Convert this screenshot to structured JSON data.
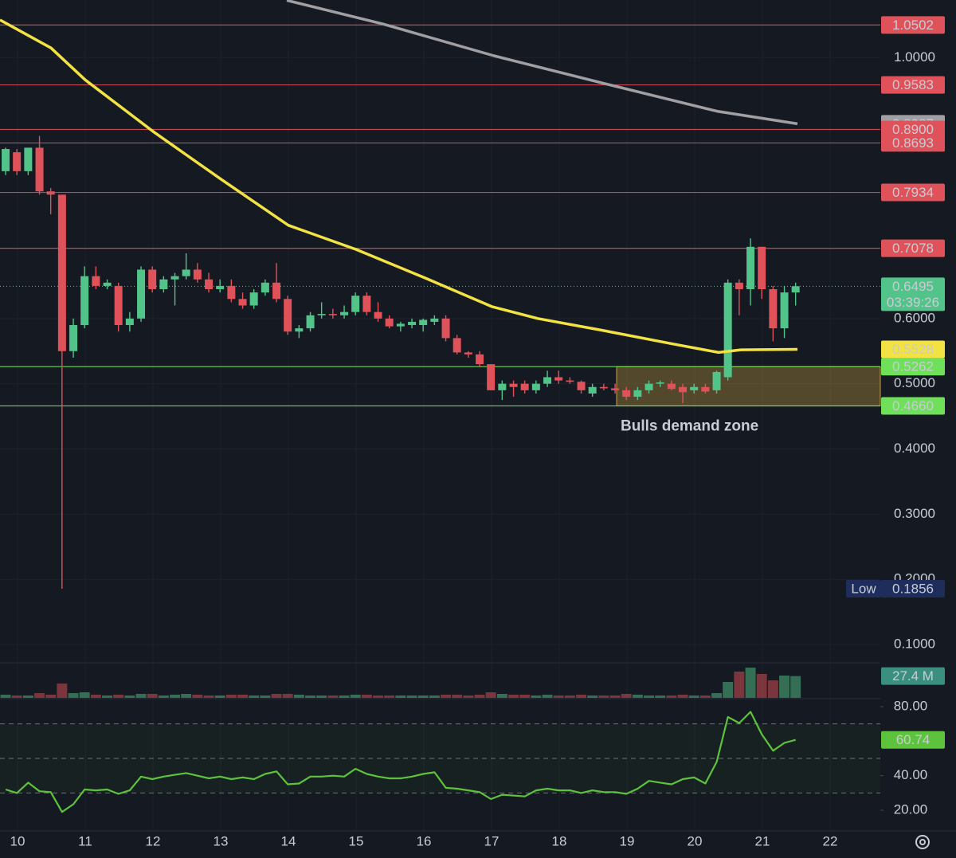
{
  "chart_data": {
    "type": "candlestick",
    "up_color": "#52c48a",
    "down_color": "#e0525a",
    "xlim": [
      9.741,
      22.741
    ],
    "xticks": [
      10,
      11,
      12,
      13,
      14,
      15,
      16,
      17,
      18,
      19,
      20,
      21,
      22
    ],
    "ylim": [
      0.072,
      1.0885
    ],
    "yticks": [
      {
        "value": 0.1,
        "label": "0.1000"
      },
      {
        "value": 0.2,
        "label": "0.2000"
      },
      {
        "value": 0.3,
        "label": "0.3000"
      },
      {
        "value": 0.4,
        "label": "0.4000"
      },
      {
        "value": 0.5,
        "label": "0.5000"
      },
      {
        "value": 0.6,
        "label": "0.6000"
      },
      {
        "value": 1.0,
        "label": "1.0000"
      }
    ],
    "grid": true,
    "x": [
      9.824,
      9.99,
      10.157,
      10.324,
      10.49,
      10.657,
      10.824,
      10.99,
      11.157,
      11.324,
      11.49,
      11.657,
      11.824,
      11.99,
      12.157,
      12.324,
      12.49,
      12.657,
      12.824,
      12.99,
      13.157,
      13.324,
      13.49,
      13.657,
      13.824,
      13.99,
      14.157,
      14.324,
      14.49,
      14.657,
      14.824,
      14.99,
      15.157,
      15.324,
      15.49,
      15.657,
      15.824,
      15.99,
      16.157,
      16.324,
      16.49,
      16.657,
      16.824,
      16.99,
      17.157,
      17.324,
      17.49,
      17.657,
      17.824,
      17.99,
      18.157,
      18.324,
      18.49,
      18.657,
      18.824,
      18.99,
      19.157,
      19.324,
      19.49,
      19.657,
      19.824,
      19.99,
      20.157,
      20.324,
      20.49,
      20.657,
      20.824,
      20.99,
      21.157,
      21.324,
      21.49
    ],
    "open": [
      0.826,
      0.855,
      0.826,
      0.862,
      0.795,
      0.79,
      0.55,
      0.59,
      0.665,
      0.65,
      0.65,
      0.59,
      0.6,
      0.675,
      0.645,
      0.66,
      0.665,
      0.675,
      0.66,
      0.645,
      0.65,
      0.63,
      0.62,
      0.64,
      0.655,
      0.63,
      0.58,
      0.585,
      0.605,
      0.607,
      0.605,
      0.61,
      0.635,
      0.61,
      0.6,
      0.588,
      0.59,
      0.59,
      0.595,
      0.6,
      0.57,
      0.548,
      0.545,
      0.53,
      0.49,
      0.5,
      0.5,
      0.49,
      0.5,
      0.51,
      0.505,
      0.503,
      0.485,
      0.495,
      0.493,
      0.49,
      0.48,
      0.49,
      0.5,
      0.5,
      0.495,
      0.49,
      0.495,
      0.49,
      0.51,
      0.655,
      0.645,
      0.71,
      0.645,
      0.585,
      0.64
    ],
    "high": [
      0.862,
      0.86,
      0.86,
      0.88,
      0.8,
      0.79,
      0.6,
      0.68,
      0.68,
      0.66,
      0.655,
      0.61,
      0.68,
      0.68,
      0.665,
      0.67,
      0.7,
      0.685,
      0.67,
      0.66,
      0.66,
      0.64,
      0.645,
      0.66,
      0.685,
      0.635,
      0.59,
      0.61,
      0.625,
      0.615,
      0.62,
      0.64,
      0.64,
      0.625,
      0.605,
      0.595,
      0.6,
      0.6,
      0.605,
      0.605,
      0.575,
      0.55,
      0.55,
      0.53,
      0.505,
      0.505,
      0.505,
      0.505,
      0.52,
      0.52,
      0.51,
      0.505,
      0.5,
      0.5,
      0.5,
      0.495,
      0.495,
      0.505,
      0.505,
      0.505,
      0.5,
      0.5,
      0.5,
      0.52,
      0.66,
      0.66,
      0.723,
      0.71,
      0.65,
      0.65,
      0.655
    ],
    "low": [
      0.82,
      0.82,
      0.82,
      0.79,
      0.76,
      0.1856,
      0.54,
      0.585,
      0.645,
      0.645,
      0.58,
      0.58,
      0.595,
      0.64,
      0.64,
      0.62,
      0.66,
      0.655,
      0.64,
      0.64,
      0.625,
      0.615,
      0.615,
      0.635,
      0.625,
      0.575,
      0.57,
      0.58,
      0.6,
      0.6,
      0.6,
      0.605,
      0.605,
      0.595,
      0.585,
      0.58,
      0.585,
      0.58,
      0.59,
      0.565,
      0.545,
      0.54,
      0.525,
      0.49,
      0.475,
      0.48,
      0.485,
      0.485,
      0.495,
      0.5,
      0.5,
      0.485,
      0.48,
      0.49,
      0.485,
      0.475,
      0.475,
      0.485,
      0.495,
      0.49,
      0.47,
      0.485,
      0.485,
      0.485,
      0.505,
      0.605,
      0.62,
      0.63,
      0.565,
      0.57,
      0.62
    ],
    "close": [
      0.86,
      0.826,
      0.862,
      0.795,
      0.79,
      0.55,
      0.59,
      0.665,
      0.65,
      0.655,
      0.59,
      0.6,
      0.675,
      0.645,
      0.66,
      0.665,
      0.675,
      0.66,
      0.645,
      0.65,
      0.63,
      0.62,
      0.64,
      0.655,
      0.63,
      0.58,
      0.585,
      0.605,
      0.607,
      0.605,
      0.61,
      0.635,
      0.61,
      0.6,
      0.588,
      0.592,
      0.595,
      0.598,
      0.6,
      0.57,
      0.548,
      0.545,
      0.53,
      0.49,
      0.5,
      0.495,
      0.49,
      0.5,
      0.51,
      0.505,
      0.503,
      0.49,
      0.495,
      0.493,
      0.49,
      0.48,
      0.49,
      0.5,
      0.502,
      0.492,
      0.487,
      0.495,
      0.488,
      0.518,
      0.655,
      0.645,
      0.71,
      0.645,
      0.585,
      0.64,
      0.6495
    ],
    "volume": [
      4,
      3,
      3,
      6,
      4,
      18,
      6,
      7,
      4,
      3,
      4,
      3,
      5,
      5,
      3,
      4,
      5,
      4,
      3,
      3,
      4,
      4,
      3,
      3,
      5,
      5,
      4,
      3,
      3,
      3,
      3,
      4,
      4,
      3,
      3,
      3,
      3,
      3,
      3,
      4,
      4,
      3,
      4,
      7,
      5,
      4,
      4,
      3,
      4,
      3,
      3,
      4,
      3,
      3,
      3,
      5,
      4,
      3,
      3,
      3,
      4,
      3,
      3,
      6,
      20,
      33,
      38,
      30,
      22,
      28,
      27.4
    ],
    "volume_ylim": [
      0,
      44
    ],
    "volume_label": {
      "value": 27.4,
      "label": "27.4 M"
    },
    "moving_averages": [
      {
        "color": "#f2e244",
        "x": [
          9.741,
          10.494,
          11.0,
          12.0,
          13.0,
          14.0,
          15.0,
          16.0,
          17.012,
          17.682,
          18.682,
          19.682,
          20.353,
          20.682,
          21.517
        ],
        "values": [
          1.058,
          1.015,
          0.966,
          0.887,
          0.814,
          0.743,
          0.706,
          0.663,
          0.618,
          0.6,
          0.581,
          0.561,
          0.548,
          0.552,
          0.5528
        ]
      },
      {
        "color": "#a0a0a4",
        "x": [
          13.976,
          15.388,
          17.035,
          18.682,
          20.329,
          21.517
        ],
        "values": [
          1.088,
          1.052,
          1.003,
          0.96,
          0.918,
          0.8987
        ]
      }
    ],
    "levels": [
      {
        "value": 1.0502,
        "color": "#e0525a",
        "text_color": "#ffffff",
        "line": "solid"
      },
      {
        "value": 0.9583,
        "color": "#e0525a",
        "text_color": "#ffffff",
        "line": "solid"
      },
      {
        "value": 0.8987,
        "color": "#a0a0a4",
        "text_color": "#111111",
        "line": "none"
      },
      {
        "value": 0.89,
        "label": "0.8900",
        "color": "#e0525a",
        "text_color": "#ffffff",
        "line": "solid"
      },
      {
        "value": 0.8693,
        "color": "#e0525a",
        "text_color": "#ffffff",
        "line": "solid"
      },
      {
        "value": 0.7934,
        "color": "#e0525a",
        "text_color": "#ffffff",
        "line": "solid"
      },
      {
        "value": 0.7078,
        "color": "#e0525a",
        "text_color": "#ffffff",
        "line": "solid"
      },
      {
        "value": 0.6495,
        "color": "#52c48a",
        "text_color": "#111111",
        "line": "dotted",
        "countdown": "03:39:26"
      },
      {
        "value": 0.5528,
        "color": "#f2e244",
        "text_color": "#111111",
        "line": "none"
      },
      {
        "value": 0.5262,
        "color": "#6ee05a",
        "text_color": "#111111",
        "line": "solid"
      },
      {
        "value": 0.466,
        "label": "0.4660",
        "color": "#6ee05a",
        "text_color": "#111111",
        "line": "solid"
      },
      {
        "value": 0.1856,
        "color": "#1f2d5c",
        "text_color": "#e0e4f0",
        "line": "none",
        "tag": "Low"
      }
    ],
    "zone": {
      "x_start": 18.847,
      "low": 0.466,
      "high": 0.5262,
      "color": "#c8a040",
      "label": "Bulls demand zone"
    },
    "rsi": {
      "color": "#5ec33c",
      "ylim": [
        8.5,
        85.06
      ],
      "yticks": [
        {
          "value": 80,
          "label": "80.00"
        },
        {
          "value": 40,
          "label": "40.00"
        },
        {
          "value": 20,
          "label": "20.00"
        }
      ],
      "bands": [
        70,
        50,
        30
      ],
      "values": [
        32,
        30,
        36,
        31,
        30.5,
        19,
        23.5,
        32,
        31.5,
        32,
        29.5,
        31.5,
        39.5,
        38,
        39.5,
        40.5,
        41.5,
        40,
        38.5,
        39.5,
        38,
        39,
        38,
        41,
        42.5,
        35,
        35.5,
        39.5,
        39.5,
        40,
        39.5,
        44,
        41,
        39.5,
        38.5,
        38.5,
        39.5,
        41,
        42,
        33,
        32.5,
        31.5,
        30.5,
        26.5,
        29,
        28.5,
        28,
        31.5,
        32.5,
        31.5,
        31.5,
        30,
        31.5,
        30.5,
        30.5,
        29.5,
        32.5,
        37,
        36,
        35,
        38,
        39,
        35.5,
        48,
        74,
        70.5,
        77,
        64,
        54.5,
        59,
        60.74
      ]
    }
  }
}
